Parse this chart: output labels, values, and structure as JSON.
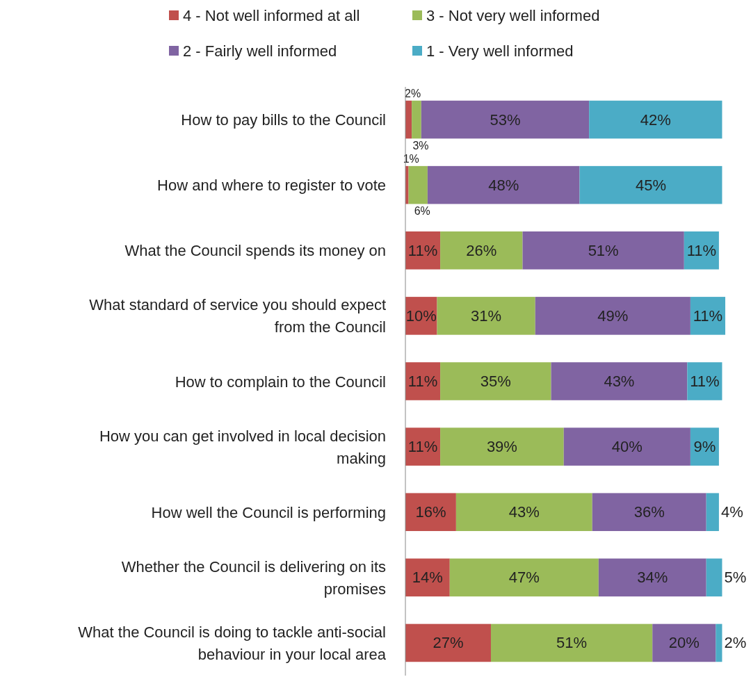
{
  "chart_data": {
    "type": "bar",
    "orientation": "horizontal",
    "stacked": true,
    "legend": "top",
    "categories": [
      "How to pay bills to the Council",
      "How and where to register to vote",
      "What the Council spends its money on",
      "What standard of service you should expect from the Council",
      "How to complain to the Council",
      "How you can get involved in local decision making",
      "How well the Council is performing",
      "Whether the Council is delivering on its promises",
      "What the Council is doing to tackle anti-social behaviour in your local area"
    ],
    "series": [
      {
        "name": "4 - Not well informed at all",
        "color": "#c0504d",
        "values": [
          2,
          1,
          11,
          10,
          11,
          11,
          16,
          14,
          27
        ],
        "value_labels": [
          "2%",
          "1%",
          "11%",
          "10%",
          "11%",
          "11%",
          "16%",
          "14%",
          "27%"
        ]
      },
      {
        "name": "3 - Not very well informed",
        "color": "#9bbb59",
        "values": [
          3,
          6,
          26,
          31,
          35,
          39,
          43,
          47,
          51
        ],
        "value_labels": [
          "3%",
          "6%",
          "26%",
          "31%",
          "35%",
          "39%",
          "43%",
          "47%",
          "51%"
        ]
      },
      {
        "name": "2 - Fairly well informed",
        "color": "#8064a2",
        "values": [
          53,
          48,
          51,
          49,
          43,
          40,
          36,
          34,
          20
        ],
        "value_labels": [
          "53%",
          "48%",
          "51%",
          "49%",
          "43%",
          "40%",
          "36%",
          "34%",
          "20%"
        ]
      },
      {
        "name": "1 - Very well informed",
        "color": "#4bacc6",
        "values": [
          42,
          45,
          11,
          11,
          11,
          9,
          4,
          5,
          2
        ],
        "value_labels": [
          "42%",
          "45%",
          "11%",
          "11%",
          "11%",
          "9%",
          "4%",
          "5%",
          "2%"
        ]
      }
    ]
  }
}
